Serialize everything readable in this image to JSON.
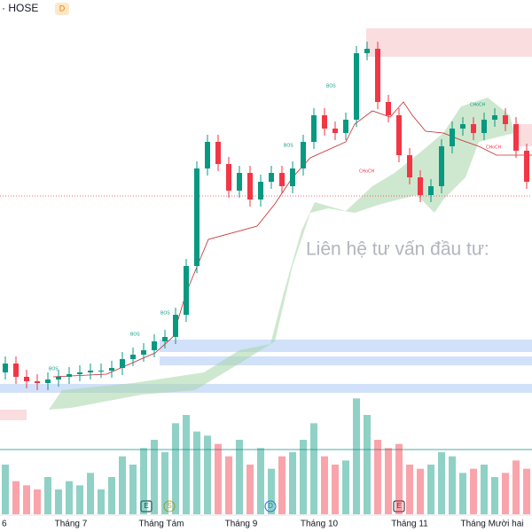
{
  "header": {
    "exchange": "· HOSE",
    "badge": "D"
  },
  "watermark": "Liên hệ tư vấn đầu tư:",
  "annotations": {
    "bos": [
      "BOS",
      "BOS",
      "BOS",
      "BOS",
      "BOS"
    ],
    "choch": [
      "CHoCH",
      "CHoCH",
      "CHoCH"
    ]
  },
  "events": [
    "E",
    "S",
    "D",
    "E"
  ],
  "x_labels": [
    "6",
    "Tháng 7",
    "Tháng Tám",
    "Tháng 9",
    "Tháng 10",
    "Tháng 11",
    "Tháng Mười hai"
  ],
  "chart_data": {
    "type": "candlestick",
    "ylim": [
      0,
      600
    ],
    "up_color": "#089981",
    "down_color": "#f23645",
    "open": [
      180,
      190,
      175,
      170,
      168,
      172,
      175,
      178,
      180,
      182,
      182,
      185,
      195,
      200,
      205,
      215,
      220,
      245,
      300,
      410,
      440,
      415,
      385,
      405,
      375,
      395,
      405,
      390,
      410,
      440,
      470,
      455,
      450,
      465,
      540,
      545,
      485,
      470,
      425,
      400,
      380,
      390,
      435,
      455,
      460,
      450,
      465,
      470,
      460,
      430
    ],
    "high": [
      198,
      198,
      183,
      178,
      180,
      183,
      186,
      188,
      190,
      190,
      193,
      203,
      208,
      213,
      223,
      228,
      253,
      308,
      418,
      448,
      448,
      423,
      413,
      413,
      403,
      413,
      413,
      418,
      448,
      478,
      478,
      463,
      473,
      548,
      553,
      553,
      493,
      478,
      433,
      408,
      398,
      443,
      463,
      468,
      468,
      473,
      478,
      478,
      468,
      438
    ],
    "low": [
      172,
      167,
      162,
      160,
      160,
      164,
      167,
      170,
      172,
      174,
      174,
      177,
      187,
      192,
      197,
      207,
      212,
      237,
      292,
      402,
      407,
      377,
      377,
      367,
      367,
      387,
      382,
      382,
      402,
      432,
      447,
      442,
      442,
      457,
      532,
      477,
      462,
      417,
      392,
      372,
      372,
      382,
      427,
      447,
      442,
      442,
      457,
      452,
      422,
      387
    ],
    "close": [
      190,
      175,
      170,
      168,
      172,
      175,
      178,
      180,
      182,
      182,
      185,
      195,
      200,
      205,
      215,
      220,
      245,
      300,
      410,
      440,
      415,
      385,
      405,
      375,
      395,
      405,
      390,
      410,
      440,
      470,
      455,
      450,
      465,
      540,
      545,
      485,
      470,
      425,
      400,
      380,
      390,
      435,
      455,
      460,
      450,
      465,
      470,
      460,
      430,
      395
    ],
    "volume": [
      60,
      40,
      35,
      30,
      45,
      30,
      40,
      35,
      50,
      30,
      45,
      70,
      60,
      80,
      90,
      75,
      110,
      120,
      100,
      95,
      85,
      70,
      90,
      60,
      80,
      55,
      70,
      75,
      90,
      110,
      70,
      60,
      65,
      140,
      120,
      90,
      80,
      85,
      60,
      55,
      60,
      75,
      70,
      50,
      55,
      60,
      45,
      50,
      65,
      55
    ],
    "vlim": [
      0,
      150
    ]
  }
}
